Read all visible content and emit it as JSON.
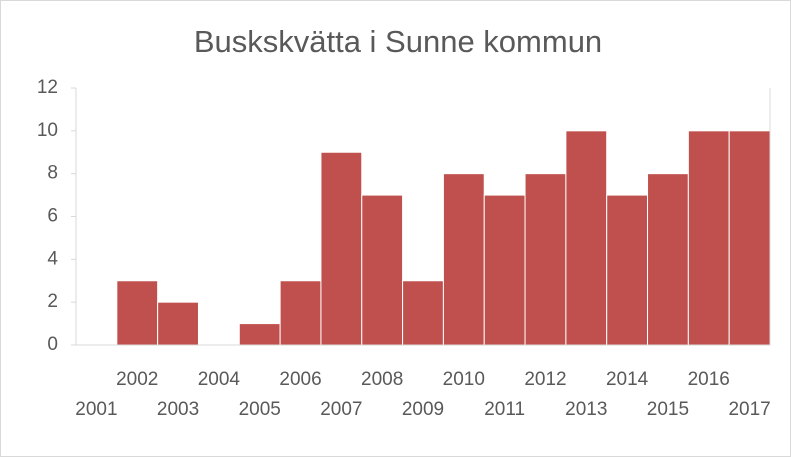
{
  "chart_data": {
    "type": "bar",
    "title": "Buskskvätta i Sunne kommun",
    "categories": [
      "2001",
      "2002",
      "2003",
      "2004",
      "2005",
      "2006",
      "2007",
      "2008",
      "2009",
      "2010",
      "2011",
      "2012",
      "2013",
      "2014",
      "2015",
      "2016",
      "2017"
    ],
    "values": [
      0,
      3,
      2,
      0,
      1,
      3,
      9,
      7,
      3,
      8,
      7,
      8,
      10,
      7,
      8,
      10,
      10
    ],
    "color": "#c0504d",
    "ylim": [
      0,
      12
    ],
    "yticks": [
      0,
      2,
      4,
      6,
      8,
      10,
      12
    ],
    "grid": false
  }
}
